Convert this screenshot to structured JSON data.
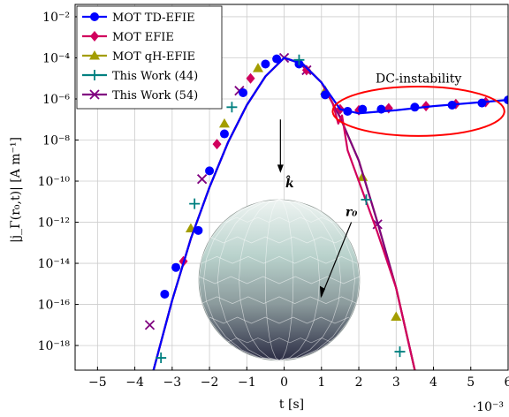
{
  "chart_data": {
    "type": "line",
    "title": "",
    "xlabel": "t [s]",
    "x_multiplier_label": "·10⁻³",
    "ylabel": "|j_Γ(r₀,t)| [A m⁻¹]",
    "xlim": [
      -5.6,
      6.0
    ],
    "ylim_log10": [
      -19.2,
      -1.4
    ],
    "yscale": "log",
    "grid": true,
    "legend_position": "top-left",
    "x_ticks": [
      {
        "value": -5,
        "label": "−5"
      },
      {
        "value": -4,
        "label": "−4"
      },
      {
        "value": -3,
        "label": "−3"
      },
      {
        "value": -2,
        "label": "−2"
      },
      {
        "value": -1,
        "label": "−1"
      },
      {
        "value": 0,
        "label": "0"
      },
      {
        "value": 1,
        "label": "1"
      },
      {
        "value": 2,
        "label": "2"
      },
      {
        "value": 3,
        "label": "3"
      },
      {
        "value": 4,
        "label": "4"
      },
      {
        "value": 5,
        "label": "5"
      },
      {
        "value": 6,
        "label": "6"
      }
    ],
    "y_ticks": [
      {
        "exp": -2,
        "label": "10⁻²"
      },
      {
        "exp": -4,
        "label": "10⁻⁴"
      },
      {
        "exp": -6,
        "label": "10⁻⁶"
      },
      {
        "exp": -8,
        "label": "10⁻⁸"
      },
      {
        "exp": -10,
        "label": "10⁻¹⁰"
      },
      {
        "exp": -12,
        "label": "10⁻¹²"
      },
      {
        "exp": -14,
        "label": "10⁻¹⁴"
      },
      {
        "exp": -16,
        "label": "10⁻¹⁶"
      },
      {
        "exp": -18,
        "label": "10⁻¹⁸"
      }
    ],
    "series": [
      {
        "name": "MOT TD-EFIE",
        "color": "#0000ff",
        "marker": "circle",
        "x": [
          -3.5,
          -3.0,
          -2.5,
          -2.0,
          -1.5,
          -1.0,
          -0.5,
          0.0,
          0.5,
          1.0,
          1.5,
          2.0,
          3.0,
          4.0,
          5.0,
          6.0
        ],
        "log10_y": [
          -19.2,
          -15.8,
          -12.8,
          -10.3,
          -8.1,
          -6.3,
          -4.9,
          -4.0,
          -4.3,
          -5.2,
          -6.5,
          -6.7,
          -6.55,
          -6.35,
          -6.2,
          -6.05
        ],
        "marker_x": [
          -3.2,
          -2.9,
          -2.3,
          -2.0,
          -1.6,
          -1.1,
          -0.5,
          -0.2,
          0.4,
          1.1,
          1.7,
          2.1,
          2.6,
          3.5,
          4.5,
          5.3,
          6.0
        ],
        "marker_log10_y": [
          -15.5,
          -14.2,
          -12.4,
          -9.5,
          -7.7,
          -5.7,
          -4.3,
          -4.05,
          -4.3,
          -5.8,
          -6.6,
          -6.5,
          -6.5,
          -6.4,
          -6.3,
          -6.2,
          -6.05
        ]
      },
      {
        "name": "MOT EFIE",
        "color": "#d1005d",
        "marker": "diamond",
        "x": [
          -3.5,
          -3.0,
          -2.5,
          -2.0,
          -1.5,
          -1.0,
          -0.5,
          0.0,
          0.5,
          1.0,
          1.3,
          1.45,
          1.55,
          1.7,
          2.0,
          2.5,
          3.0,
          3.5
        ],
        "log10_y": [
          -19.2,
          -15.8,
          -12.8,
          -10.3,
          -8.1,
          -6.3,
          -4.9,
          -4.0,
          -4.3,
          -5.2,
          -6.2,
          -7.2,
          -6.8,
          -8.5,
          -10.0,
          -12.5,
          -15.2,
          -19.2
        ],
        "marker_x": [
          -2.7,
          -1.8,
          -0.9,
          0.6,
          1.5,
          2.0,
          2.8,
          3.8,
          4.6,
          5.4
        ],
        "marker_log10_y": [
          -13.9,
          -8.2,
          -5.0,
          -4.6,
          -6.5,
          -6.55,
          -6.45,
          -6.35,
          -6.25,
          -6.15
        ]
      },
      {
        "name": "MOT qH-EFIE",
        "color": "#a39d00",
        "marker": "triangle",
        "x": [
          -3.5,
          -3.0,
          -2.5,
          -2.0,
          -1.5,
          -1.0,
          -0.5,
          0.0,
          0.5,
          1.0,
          1.5,
          2.0,
          2.5,
          3.0,
          3.5
        ],
        "log10_y": [
          -19.2,
          -15.8,
          -12.8,
          -10.3,
          -8.1,
          -6.3,
          -4.9,
          -4.0,
          -4.3,
          -5.2,
          -6.9,
          -9.0,
          -12.0,
          -15.2,
          -19.2
        ],
        "marker_x": [
          -2.5,
          -1.6,
          -0.7,
          1.1,
          2.1,
          3.0
        ],
        "marker_log10_y": [
          -12.3,
          -7.2,
          -4.5,
          -5.6,
          -9.8,
          -16.6
        ]
      },
      {
        "name": "This Work (44)",
        "color": "#008080",
        "marker": "plus",
        "x": [],
        "log10_y": [],
        "marker_x": [
          -3.3,
          -2.4,
          -1.4,
          0.4,
          2.2,
          3.1
        ],
        "marker_log10_y": [
          -18.6,
          -11.1,
          -6.4,
          -4.1,
          -10.9,
          -18.3
        ]
      },
      {
        "name": "This Work (54)",
        "color": "#800080",
        "marker": "x",
        "x": [
          -3.5,
          -3.0,
          -2.5,
          -2.0,
          -1.5,
          -1.0,
          -0.5,
          0.0,
          0.5,
          1.0,
          1.5,
          2.0,
          2.5,
          3.0,
          3.5
        ],
        "log10_y": [
          -19.2,
          -15.8,
          -12.8,
          -10.3,
          -8.1,
          -6.3,
          -4.9,
          -4.0,
          -4.3,
          -5.2,
          -6.9,
          -9.0,
          -12.0,
          -15.2,
          -19.2
        ],
        "marker_x": [
          -3.6,
          -2.2,
          -1.2,
          0.0,
          0.6,
          2.5
        ],
        "marker_log10_y": [
          -17.0,
          -9.9,
          -5.6,
          -4.0,
          -4.6,
          -12.1
        ]
      }
    ],
    "annotations": [
      {
        "text": "DC-instability",
        "color": "#ff0000",
        "anchor_x": 3.6,
        "anchor_log10_y": -5.2
      },
      {
        "text": "k̂",
        "color": "#000000",
        "anchor_x": 0.15,
        "anchor_log10_y": -10.3
      },
      {
        "text": "r₀",
        "color": "#000000",
        "anchor_x": 1.8,
        "anchor_log10_y": -11.7
      }
    ],
    "instability_region": {
      "x_center": 3.6,
      "log10_y_center": -6.6,
      "x_half_width": 2.3,
      "log10_half_height": 1.2,
      "color": "#ff0000"
    }
  }
}
